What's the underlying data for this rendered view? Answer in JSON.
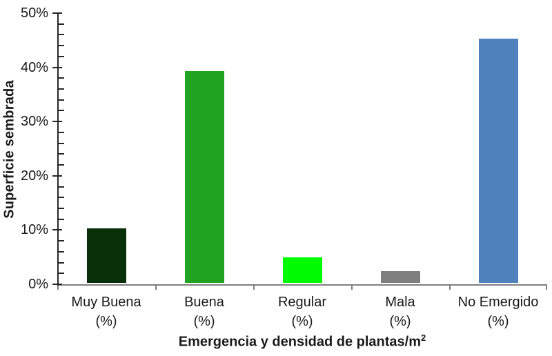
{
  "chart_data": {
    "type": "bar",
    "title": "",
    "ylabel": "Superficie sembrada",
    "xlabel": "Emergencia y densidad de plantas/m",
    "xlabel_superscript": "2",
    "categories": [
      "Muy Buena",
      "Buena",
      "Regular",
      "Mala",
      "No Emergido"
    ],
    "category_sublabel": "(%)",
    "values": [
      10,
      39,
      4.7,
      2.2,
      45
    ],
    "bar_colors": [
      "#083008",
      "#1FA41F",
      "#00FA00",
      "#7F7F7F",
      "#4F81BD"
    ],
    "ylim": [
      0,
      50
    ],
    "ytick_step_major": 10,
    "ytick_step_minor": 2,
    "ytick_labels": [
      "0%",
      "10%",
      "20%",
      "30%",
      "40%",
      "50%"
    ],
    "grid": "off",
    "legend": "none",
    "background_color": "#FFFFFF",
    "text_color": "#1A1A1A",
    "y_axis_color": "#262626",
    "x_axis_color": "#7F7F7F"
  }
}
